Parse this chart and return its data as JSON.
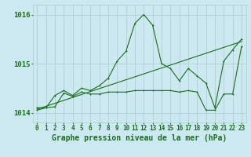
{
  "hours": [
    0,
    1,
    2,
    3,
    4,
    5,
    6,
    7,
    8,
    9,
    10,
    11,
    12,
    13,
    14,
    15,
    16,
    17,
    18,
    19,
    20,
    21,
    22,
    23
  ],
  "y_upper": [
    1014.1,
    1014.1,
    1014.35,
    1014.45,
    1014.35,
    1014.5,
    1014.45,
    1014.55,
    1014.7,
    1015.05,
    1015.25,
    1015.82,
    1016.0,
    1015.78,
    1015.0,
    1014.9,
    1014.65,
    1014.9,
    1014.75,
    1014.6,
    1014.1,
    1015.05,
    1015.28,
    1015.5
  ],
  "y_lower": [
    1014.05,
    1014.1,
    1014.12,
    1014.4,
    1014.33,
    1014.42,
    1014.38,
    1014.38,
    1014.42,
    1014.42,
    1014.42,
    1014.45,
    1014.45,
    1014.45,
    1014.45,
    1014.45,
    1014.42,
    1014.45,
    1014.42,
    1014.05,
    1014.05,
    1014.38,
    1014.38,
    1015.35
  ],
  "y_trend": [
    1014.07,
    1014.13,
    1014.19,
    1014.25,
    1014.31,
    1014.37,
    1014.43,
    1014.49,
    1014.55,
    1014.61,
    1014.67,
    1014.73,
    1014.79,
    1014.85,
    1014.91,
    1014.97,
    1015.03,
    1015.09,
    1015.15,
    1015.21,
    1015.27,
    1015.33,
    1015.39,
    1015.45
  ],
  "ylim": [
    1013.8,
    1016.2
  ],
  "yticks": [
    1014,
    1015,
    1016
  ],
  "xlim": [
    -0.5,
    23.5
  ],
  "bg_color": "#cce8f0",
  "grid_color": "#aacccc",
  "line_color": "#1a6e1a",
  "label_color": "#1a6e1a",
  "xlabel": "Graphe pression niveau de la mer (hPa)",
  "xlabel_fontsize": 7,
  "tick_fontsize": 5.5,
  "ytick_fontsize": 6.5,
  "lw": 0.8,
  "ms": 2.0
}
